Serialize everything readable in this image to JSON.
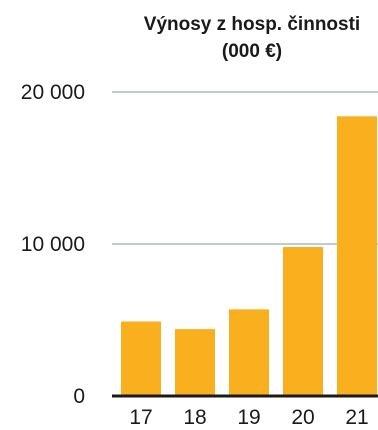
{
  "chart_data": {
    "type": "bar",
    "title_lines": [
      "Výnosy z hosp. činnosti",
      "(000 €)"
    ],
    "categories": [
      "17",
      "18",
      "19",
      "20",
      "21"
    ],
    "values": [
      4900,
      4400,
      5700,
      9800,
      18400
    ],
    "ylim": [
      0,
      20000
    ],
    "yticks": [
      0,
      10000,
      20000
    ],
    "ytick_labels": [
      "0",
      "10 000",
      "20 000"
    ],
    "xlabel": "",
    "ylabel": "",
    "grid": true,
    "colors": {
      "bar": "#F9AF1E",
      "grid": "#A9B9C7",
      "baseline": "#1a1a1a"
    }
  }
}
